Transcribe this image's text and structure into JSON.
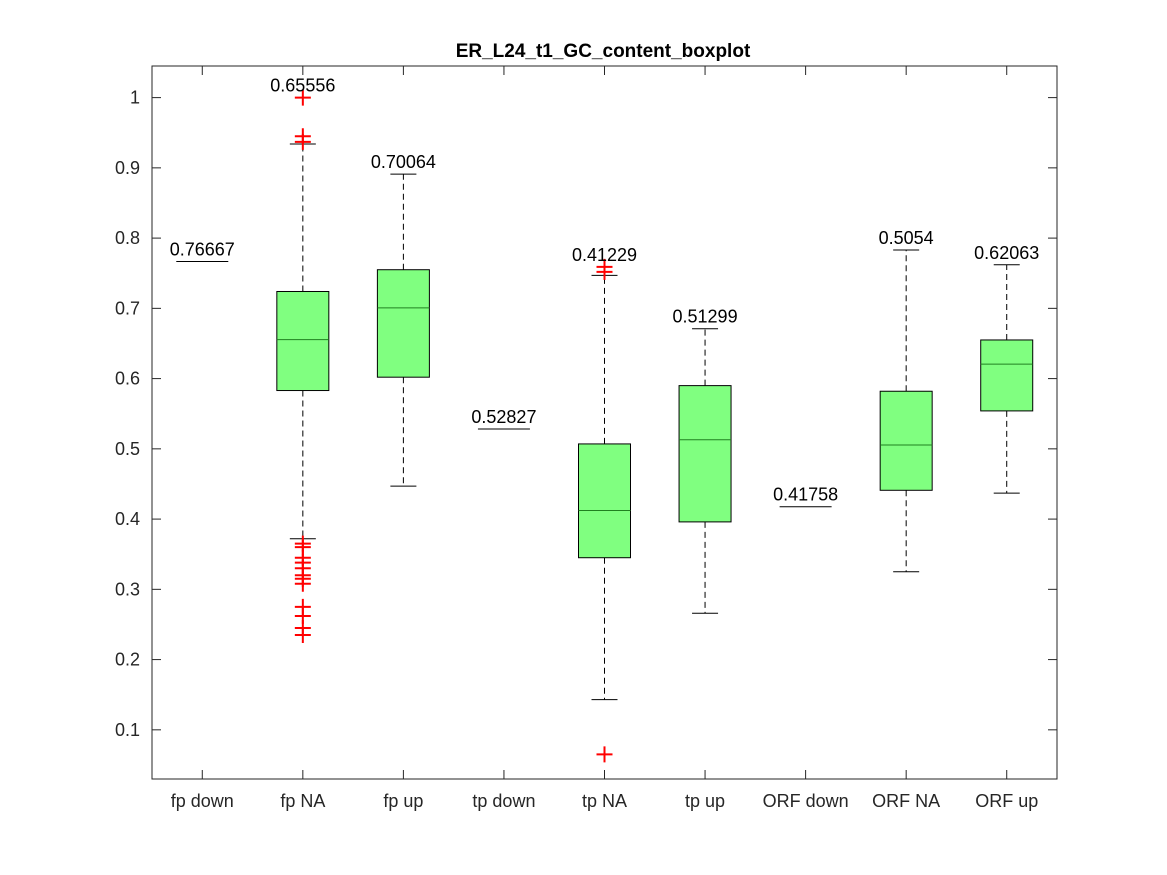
{
  "chart_data": {
    "type": "box",
    "title": "ER_L24_t1_GC_content_boxplot",
    "xlabel": "",
    "ylabel": "",
    "ylim": [
      0.03,
      1.045
    ],
    "yticks": [
      0.1,
      0.2,
      0.3,
      0.4,
      0.5,
      0.6,
      0.7,
      0.8,
      0.9,
      1
    ],
    "ytick_labels": [
      "0.1",
      "0.2",
      "0.3",
      "0.4",
      "0.5",
      "0.6",
      "0.7",
      "0.8",
      "0.9",
      "1"
    ],
    "grid": false,
    "box_color": "#80ff80",
    "outlier_color": "#ff0000",
    "categories": [
      "fp down",
      "fp NA",
      "fp up",
      "tp down",
      "tp NA",
      "tp up",
      "ORF down",
      "ORF NA",
      "ORF up"
    ],
    "boxes": [
      {
        "category": "fp down",
        "whisker_low": 0.76667,
        "q1": 0.76667,
        "median": 0.76667,
        "q3": 0.76667,
        "whisker_high": 0.76667,
        "median_label": "0.76667",
        "outliers": []
      },
      {
        "category": "fp NA",
        "whisker_low": 0.372,
        "q1": 0.583,
        "median": 0.65556,
        "q3": 0.724,
        "whisker_high": 0.934,
        "median_label": "0.65556",
        "outliers": [
          1.0,
          0.945,
          0.937,
          0.365,
          0.36,
          0.345,
          0.338,
          0.33,
          0.32,
          0.315,
          0.308,
          0.275,
          0.262,
          0.245,
          0.235
        ]
      },
      {
        "category": "fp up",
        "whisker_low": 0.447,
        "q1": 0.602,
        "median": 0.70064,
        "q3": 0.755,
        "whisker_high": 0.891,
        "median_label": "0.70064",
        "outliers": []
      },
      {
        "category": "tp down",
        "whisker_low": 0.52827,
        "q1": 0.52827,
        "median": 0.52827,
        "q3": 0.52827,
        "whisker_high": 0.52827,
        "median_label": "0.52827",
        "outliers": []
      },
      {
        "category": "tp NA",
        "whisker_low": 0.143,
        "q1": 0.345,
        "median": 0.41229,
        "q3": 0.507,
        "whisker_high": 0.747,
        "median_label": "0.41229",
        "outliers": [
          0.759,
          0.752,
          0.065
        ]
      },
      {
        "category": "tp up",
        "whisker_low": 0.266,
        "q1": 0.396,
        "median": 0.51299,
        "q3": 0.59,
        "whisker_high": 0.671,
        "median_label": "0.51299",
        "outliers": []
      },
      {
        "category": "ORF down",
        "whisker_low": 0.41758,
        "q1": 0.41758,
        "median": 0.41758,
        "q3": 0.41758,
        "whisker_high": 0.41758,
        "median_label": "0.41758",
        "outliers": []
      },
      {
        "category": "ORF NA",
        "whisker_low": 0.325,
        "q1": 0.441,
        "median": 0.5054,
        "q3": 0.582,
        "whisker_high": 0.783,
        "median_label": "0.5054",
        "outliers": []
      },
      {
        "category": "ORF up",
        "whisker_low": 0.437,
        "q1": 0.554,
        "median": 0.62063,
        "q3": 0.655,
        "whisker_high": 0.762,
        "median_label": "0.62063",
        "outliers": []
      }
    ]
  }
}
